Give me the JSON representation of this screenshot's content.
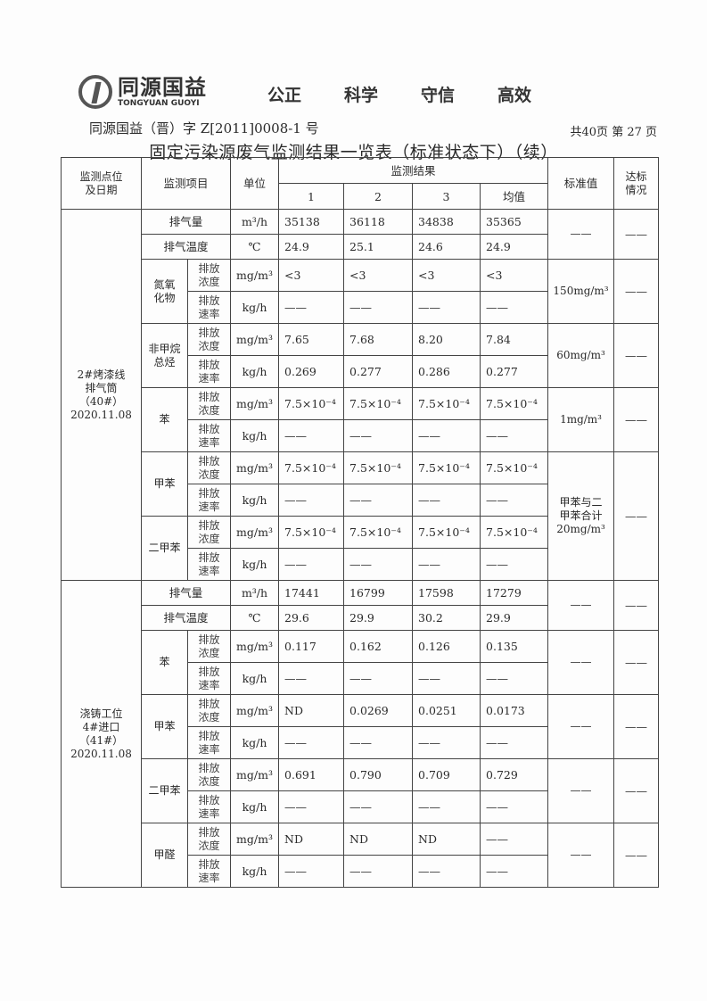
{
  "header": {
    "logo_cn": "同源国益",
    "logo_en": "TONGYUAN GUOYI",
    "motto": [
      "公正",
      "科学",
      "守信",
      "高效"
    ],
    "doc_number": "同源国益（晋）字 Z[2011]0008-1 号",
    "pages": "共40页  第 27 页",
    "title": "固定污染源废气监测结果一览表（标准状态下）（续）"
  },
  "table": {
    "headers": {
      "location": "监测点位\n及日期",
      "item": "监测项目",
      "unit": "单位",
      "results": "监测结果",
      "runs": [
        "1",
        "2",
        "3",
        "均值"
      ],
      "standard": "标准值",
      "compliance": "达标\n情况"
    },
    "sections": [
      {
        "location": "2#烤漆线\n排气筒\n（40#）\n2020.11.08",
        "groups": [
          {
            "item": "排气量",
            "rows": [
              {
                "unit": "m³/h",
                "values": [
                  "35138",
                  "36118",
                  "34838",
                  "35365"
                ]
              }
            ]
          },
          {
            "item": "排气温度",
            "rows": [
              {
                "unit": "℃",
                "values": [
                  "24.9",
                  "25.1",
                  "24.6",
                  "24.9"
                ]
              }
            ]
          },
          {
            "item": "氮氧\n化物",
            "rows": [
              {
                "sub": "排放\n浓度",
                "unit": "mg/m³",
                "values": [
                  "<3",
                  "<3",
                  "<3",
                  "<3"
                ]
              },
              {
                "sub": "排放\n速率",
                "unit": "kg/h",
                "values": [
                  "——",
                  "——",
                  "——",
                  "——"
                ]
              }
            ]
          },
          {
            "item": "非甲烷\n总烃",
            "rows": [
              {
                "sub": "排放\n浓度",
                "unit": "mg/m³",
                "values": [
                  "7.65",
                  "7.68",
                  "8.20",
                  "7.84"
                ]
              },
              {
                "sub": "排放\n速率",
                "unit": "kg/h",
                "values": [
                  "0.269",
                  "0.277",
                  "0.286",
                  "0.277"
                ]
              }
            ]
          },
          {
            "item": "苯",
            "rows": [
              {
                "sub": "排放\n浓度",
                "unit": "mg/m³",
                "values": [
                  "7.5×10⁻⁴",
                  "7.5×10⁻⁴",
                  "7.5×10⁻⁴",
                  "7.5×10⁻⁴"
                ]
              },
              {
                "sub": "排放\n速率",
                "unit": "kg/h",
                "values": [
                  "——",
                  "——",
                  "——",
                  "——"
                ]
              }
            ]
          },
          {
            "item": "甲苯",
            "rows": [
              {
                "sub": "排放\n浓度",
                "unit": "mg/m³",
                "values": [
                  "7.5×10⁻⁴",
                  "7.5×10⁻⁴",
                  "7.5×10⁻⁴",
                  "7.5×10⁻⁴"
                ]
              },
              {
                "sub": "排放\n速率",
                "unit": "kg/h",
                "values": [
                  "——",
                  "——",
                  "——",
                  "——"
                ]
              }
            ]
          },
          {
            "item": "二甲苯",
            "rows": [
              {
                "sub": "排放\n浓度",
                "unit": "mg/m³",
                "values": [
                  "7.5×10⁻⁴",
                  "7.5×10⁻⁴",
                  "7.5×10⁻⁴",
                  "7.5×10⁻⁴"
                ]
              },
              {
                "sub": "排放\n速率",
                "unit": "kg/h",
                "values": [
                  "——",
                  "——",
                  "——",
                  "——"
                ]
              }
            ]
          }
        ],
        "standards": [
          {
            "rows": 2,
            "value": "——",
            "compliance": "——"
          },
          {
            "rows": 2,
            "value": "150mg/m³",
            "compliance": "——"
          },
          {
            "rows": 2,
            "value": "60mg/m³",
            "compliance": "——"
          },
          {
            "rows": 2,
            "value": "1mg/m³",
            "compliance": "——"
          },
          {
            "rows": 4,
            "value": "甲苯与二\n甲苯合计\n20mg/m³",
            "compliance": "——"
          }
        ]
      },
      {
        "location": "浇铸工位\n4#进口\n（41#）\n2020.11.08",
        "groups": [
          {
            "item": "排气量",
            "rows": [
              {
                "unit": "m³/h",
                "values": [
                  "17441",
                  "16799",
                  "17598",
                  "17279"
                ]
              }
            ]
          },
          {
            "item": "排气温度",
            "rows": [
              {
                "unit": "℃",
                "values": [
                  "29.6",
                  "29.9",
                  "30.2",
                  "29.9"
                ]
              }
            ]
          },
          {
            "item": "苯",
            "rows": [
              {
                "sub": "排放\n浓度",
                "unit": "mg/m³",
                "values": [
                  "0.117",
                  "0.162",
                  "0.126",
                  "0.135"
                ]
              },
              {
                "sub": "排放\n速率",
                "unit": "kg/h",
                "values": [
                  "——",
                  "——",
                  "——",
                  "——"
                ]
              }
            ]
          },
          {
            "item": "甲苯",
            "rows": [
              {
                "sub": "排放\n浓度",
                "unit": "mg/m³",
                "values": [
                  "ND",
                  "0.0269",
                  "0.0251",
                  "0.0173"
                ]
              },
              {
                "sub": "排放\n速率",
                "unit": "kg/h",
                "values": [
                  "——",
                  "——",
                  "——",
                  "——"
                ]
              }
            ]
          },
          {
            "item": "二甲苯",
            "rows": [
              {
                "sub": "排放\n浓度",
                "unit": "mg/m³",
                "values": [
                  "0.691",
                  "0.790",
                  "0.709",
                  "0.729"
                ]
              },
              {
                "sub": "排放\n速率",
                "unit": "kg/h",
                "values": [
                  "——",
                  "——",
                  "——",
                  "——"
                ]
              }
            ]
          },
          {
            "item": "甲醛",
            "rows": [
              {
                "sub": "排放\n浓度",
                "unit": "mg/m³",
                "values": [
                  "ND",
                  "ND",
                  "ND",
                  "——"
                ]
              },
              {
                "sub": "排放\n速率",
                "unit": "kg/h",
                "values": [
                  "——",
                  "——",
                  "——",
                  "——"
                ]
              }
            ]
          }
        ],
        "standards": [
          {
            "rows": 2,
            "value": "——",
            "compliance": "——"
          },
          {
            "rows": 2,
            "value": "——",
            "compliance": "——"
          },
          {
            "rows": 2,
            "value": "——",
            "compliance": "——"
          },
          {
            "rows": 2,
            "value": "——",
            "compliance": "——"
          },
          {
            "rows": 2,
            "value": "——",
            "compliance": "——"
          }
        ]
      }
    ]
  }
}
